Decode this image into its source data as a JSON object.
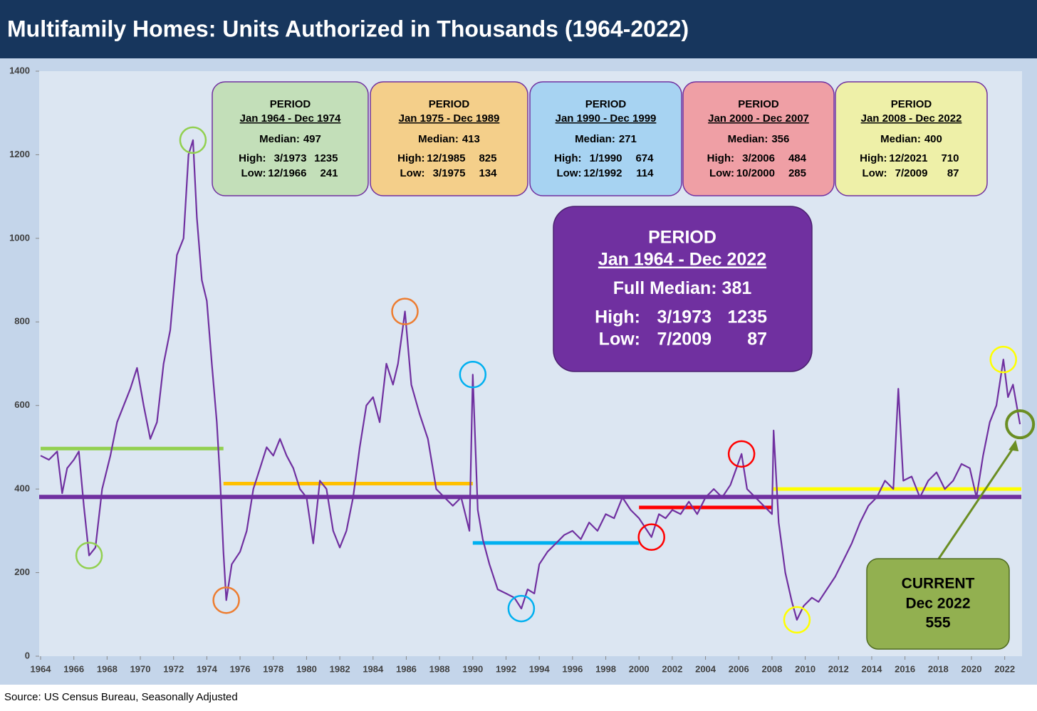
{
  "chart_data": {
    "type": "line",
    "title": "Multifamily Homes: Units Authorized in Thousands (1964-2022)",
    "source": "Source: US Census Bureau, Seasonally Adjusted",
    "xlim": [
      1964,
      2023
    ],
    "ylim": [
      0,
      1400
    ],
    "xticks": [
      1964,
      1966,
      1968,
      1970,
      1972,
      1974,
      1976,
      1978,
      1980,
      1982,
      1984,
      1986,
      1988,
      1990,
      1992,
      1994,
      1996,
      1998,
      2000,
      2002,
      2004,
      2006,
      2008,
      2010,
      2012,
      2014,
      2016,
      2018,
      2020,
      2022
    ],
    "yticks": [
      0,
      200,
      400,
      600,
      800,
      1000,
      1200,
      1400
    ],
    "series": [
      {
        "color": "#7030a0",
        "x": [
          1964.0,
          1964.5,
          1965.0,
          1965.3,
          1965.6,
          1966.0,
          1966.3,
          1966.6,
          1966.92,
          1967.3,
          1967.7,
          1968.2,
          1968.6,
          1969.0,
          1969.4,
          1969.8,
          1970.2,
          1970.6,
          1971.0,
          1971.4,
          1971.8,
          1972.2,
          1972.6,
          1972.9,
          1973.17,
          1973.4,
          1973.7,
          1974.0,
          1974.3,
          1974.6,
          1974.8,
          1975.0,
          1975.17,
          1975.5,
          1976.0,
          1976.4,
          1976.8,
          1977.2,
          1977.6,
          1978.0,
          1978.4,
          1978.8,
          1979.2,
          1979.6,
          1980.0,
          1980.4,
          1980.8,
          1981.2,
          1981.6,
          1982.0,
          1982.4,
          1982.8,
          1983.2,
          1983.6,
          1984.0,
          1984.4,
          1984.8,
          1985.2,
          1985.5,
          1985.92,
          1986.3,
          1986.8,
          1987.3,
          1987.8,
          1988.3,
          1988.8,
          1989.3,
          1989.8,
          1990.0,
          1990.3,
          1990.6,
          1991.0,
          1991.5,
          1992.0,
          1992.5,
          1992.92,
          1993.3,
          1993.7,
          1994.0,
          1994.5,
          1995.0,
          1995.5,
          1996.0,
          1996.5,
          1997.0,
          1997.5,
          1998.0,
          1998.5,
          1999.0,
          1999.5,
          2000.0,
          2000.5,
          2000.75,
          2001.2,
          2001.6,
          2002.0,
          2002.5,
          2003.0,
          2003.5,
          2004.0,
          2004.5,
          2005.0,
          2005.5,
          2006.17,
          2006.5,
          2007.0,
          2007.5,
          2008.0,
          2008.1,
          2008.4,
          2008.8,
          2009.2,
          2009.5,
          2009.9,
          2010.4,
          2010.8,
          2011.3,
          2011.8,
          2012.3,
          2012.8,
          2013.3,
          2013.8,
          2014.3,
          2014.8,
          2015.3,
          2015.6,
          2015.9,
          2016.4,
          2016.9,
          2017.4,
          2017.9,
          2018.4,
          2018.9,
          2019.4,
          2019.9,
          2020.3,
          2020.7,
          2021.1,
          2021.5,
          2021.92,
          2022.2,
          2022.5,
          2022.92
        ],
        "values": [
          480,
          470,
          490,
          390,
          450,
          470,
          490,
          360,
          241,
          260,
          400,
          480,
          560,
          600,
          640,
          690,
          600,
          520,
          560,
          700,
          780,
          960,
          1000,
          1200,
          1235,
          1050,
          900,
          850,
          700,
          560,
          420,
          250,
          134,
          220,
          250,
          300,
          400,
          450,
          500,
          480,
          520,
          480,
          450,
          400,
          380,
          270,
          420,
          400,
          300,
          260,
          300,
          380,
          500,
          600,
          620,
          560,
          700,
          650,
          700,
          825,
          650,
          580,
          520,
          400,
          380,
          360,
          380,
          300,
          674,
          350,
          280,
          220,
          160,
          150,
          140,
          114,
          160,
          150,
          220,
          250,
          270,
          290,
          300,
          280,
          320,
          300,
          340,
          330,
          380,
          350,
          330,
          300,
          285,
          340,
          330,
          350,
          340,
          370,
          340,
          380,
          400,
          380,
          410,
          484,
          400,
          380,
          360,
          340,
          540,
          320,
          200,
          130,
          87,
          120,
          140,
          130,
          160,
          190,
          230,
          270,
          320,
          360,
          380,
          420,
          400,
          640,
          420,
          430,
          380,
          420,
          440,
          400,
          420,
          460,
          450,
          380,
          480,
          560,
          600,
          710,
          620,
          650,
          555
        ]
      }
    ],
    "periods": [
      {
        "label": "PERIOD",
        "range": "Jan 1964 - Dec 1974",
        "median_label": "Median:",
        "median": 497,
        "high_label": "High:",
        "high_date": "3/1973",
        "high": 1235,
        "low_label": "Low:",
        "low_date": "12/1966",
        "low": 241,
        "color": "#c3dfb9",
        "line_color": "#92d050",
        "circle_color": "#92d050"
      },
      {
        "label": "PERIOD",
        "range": "Jan 1975 - Dec 1989",
        "median_label": "Median:",
        "median": 413,
        "high_label": "High:",
        "high_date": "12/1985",
        "high": 825,
        "low_label": "Low:",
        "low_date": "3/1975",
        "low": 134,
        "color": "#f4cf8a",
        "line_color": "#ffc000",
        "circle_color": "#ed7d31"
      },
      {
        "label": "PERIOD",
        "range": "Jan 1990 - Dec 1999",
        "median_label": "Median:",
        "median": 271,
        "high_label": "High:",
        "high_date": "1/1990",
        "high": 674,
        "low_label": "Low:",
        "low_date": "12/1992",
        "low": 114,
        "color": "#a7d3f2",
        "line_color": "#00b0f0",
        "circle_color": "#00b0f0"
      },
      {
        "label": "PERIOD",
        "range": "Jan 2000 - Dec 2007",
        "median_label": "Median:",
        "median": 356,
        "high_label": "High:",
        "high_date": "3/2006",
        "high": 484,
        "low_label": "Low:",
        "low_date": "10/2000",
        "low": 285,
        "color": "#ef9fa5",
        "line_color": "#ff0000",
        "circle_color": "#ff0000"
      },
      {
        "label": "PERIOD",
        "range": "Jan 2008 - Dec 2022",
        "median_label": "Median:",
        "median": 400,
        "high_label": "High:",
        "high_date": "12/2021",
        "high": 710,
        "low_label": "Low:",
        "low_date": "7/2009",
        "low": 87,
        "color": "#eef0a8",
        "line_color": "#ffff00",
        "circle_color": "#ffff00"
      }
    ],
    "full": {
      "label": "PERIOD",
      "range": "Jan 1964 - Dec 2022",
      "median_label": "Full Median:",
      "median": 381,
      "high_label": "High:",
      "high_date": "3/1973",
      "high": 1235,
      "low_label": "Low:",
      "low_date": "7/2009",
      "low": 87,
      "color": "#7030a0"
    },
    "current": {
      "label": "CURRENT",
      "date": "Dec 2022",
      "value": 555,
      "color": "#92b050"
    }
  }
}
